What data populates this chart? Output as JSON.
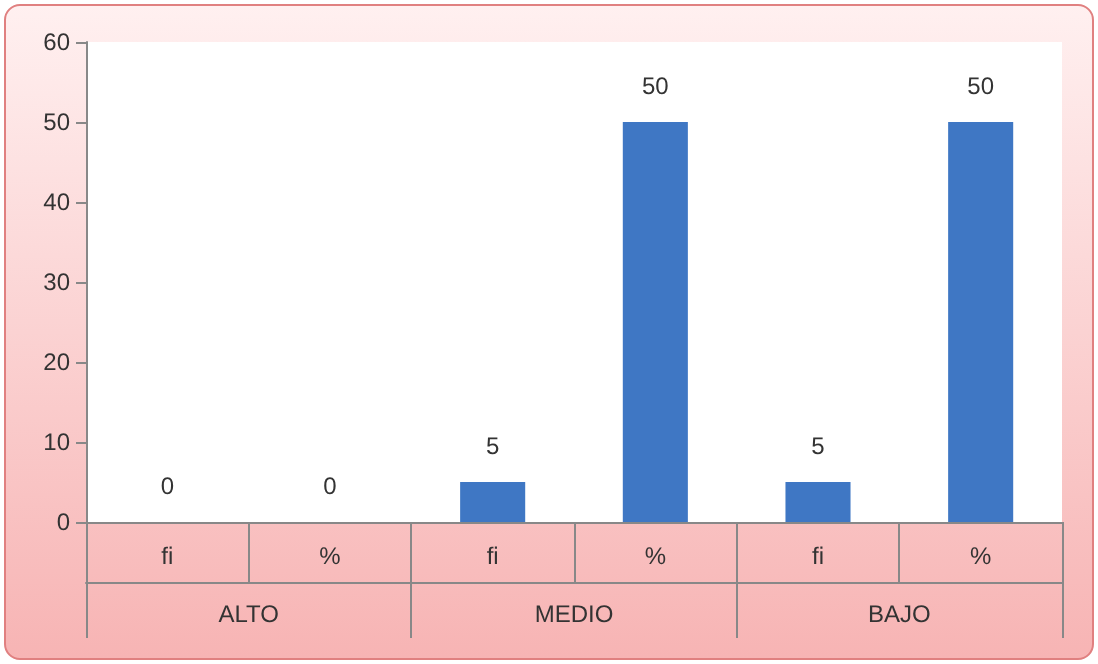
{
  "chart_data": {
    "type": "bar",
    "categories": [
      "fi",
      "%",
      "fi",
      "%",
      "fi",
      "%"
    ],
    "values": [
      0,
      0,
      5,
      50,
      5,
      50
    ],
    "color": "#3f77c4",
    "ylim": [
      0,
      60
    ],
    "yticks": [
      0,
      10,
      20,
      30,
      40,
      50,
      60
    ],
    "data_labels": true,
    "annotations": [
      "ALTO",
      "MEDIO",
      "BAJO"
    ]
  }
}
